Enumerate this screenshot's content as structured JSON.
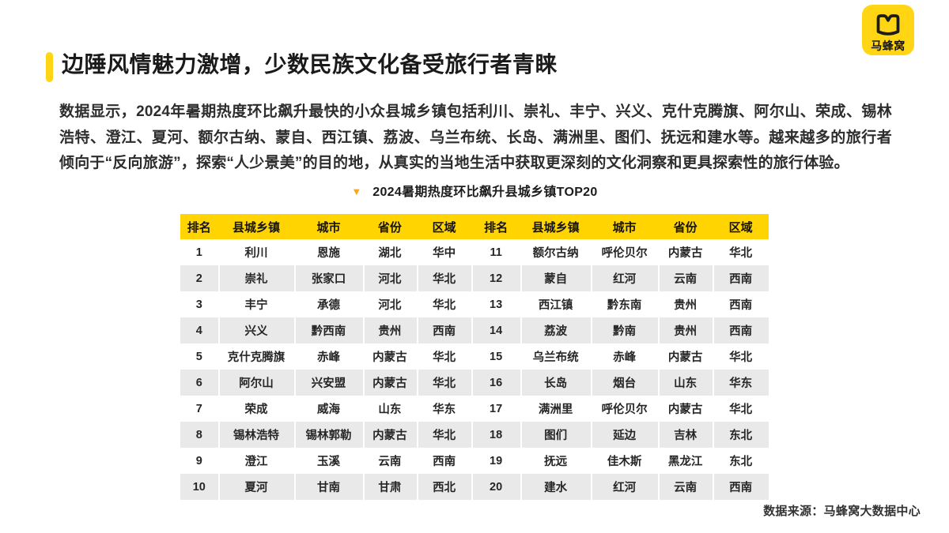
{
  "brand": {
    "logo_text": "马蜂窝",
    "logo_color": "#FFD514"
  },
  "header": {
    "title": "边陲风情魅力激增，少数民族文化备受旅行者青睐",
    "accent_color": "#FFD514"
  },
  "intro": {
    "text": "数据显示，2024年暑期热度环比飙升最快的小众县城乡镇包括利川、崇礼、丰宁、兴义、克什克腾旗、阿尔山、荣成、锡林浩特、澄江、夏河、额尔古纳、蒙自、西江镇、荔波、乌兰布统、长岛、满洲里、图们、抚远和建水等。越来越多的旅行者倾向于“反向旅游”，探索“人少景美”的目的地，从真实的当地生活中获取更深刻的文化洞察和更具探索性的旅行体验。"
  },
  "table": {
    "title": "2024暑期热度环比飙升县城乡镇TOP20",
    "title_marker_icon": "triangle-down-icon",
    "title_marker_glyph": "▼",
    "title_marker_color": "#F7A81F",
    "header_bg": "#FFD400",
    "alt_row_bg": "#E9E9E9",
    "headers": [
      "排名",
      "县城乡镇",
      "城市",
      "省份",
      "区域",
      "排名",
      "县城乡镇",
      "城市",
      "省份",
      "区域"
    ],
    "rows": [
      [
        "1",
        "利川",
        "恩施",
        "湖北",
        "华中",
        "11",
        "额尔古纳",
        "呼伦贝尔",
        "内蒙古",
        "华北"
      ],
      [
        "2",
        "崇礼",
        "张家口",
        "河北",
        "华北",
        "12",
        "蒙自",
        "红河",
        "云南",
        "西南"
      ],
      [
        "3",
        "丰宁",
        "承德",
        "河北",
        "华北",
        "13",
        "西江镇",
        "黔东南",
        "贵州",
        "西南"
      ],
      [
        "4",
        "兴义",
        "黔西南",
        "贵州",
        "西南",
        "14",
        "荔波",
        "黔南",
        "贵州",
        "西南"
      ],
      [
        "5",
        "克什克腾旗",
        "赤峰",
        "内蒙古",
        "华北",
        "15",
        "乌兰布统",
        "赤峰",
        "内蒙古",
        "华北"
      ],
      [
        "6",
        "阿尔山",
        "兴安盟",
        "内蒙古",
        "华北",
        "16",
        "长岛",
        "烟台",
        "山东",
        "华东"
      ],
      [
        "7",
        "荣成",
        "威海",
        "山东",
        "华东",
        "17",
        "满洲里",
        "呼伦贝尔",
        "内蒙古",
        "华北"
      ],
      [
        "8",
        "锡林浩特",
        "锡林郭勒",
        "内蒙古",
        "华北",
        "18",
        "图们",
        "延边",
        "吉林",
        "东北"
      ],
      [
        "9",
        "澄江",
        "玉溪",
        "云南",
        "西南",
        "19",
        "抚远",
        "佳木斯",
        "黑龙江",
        "东北"
      ],
      [
        "10",
        "夏河",
        "甘南",
        "甘肃",
        "西北",
        "20",
        "建水",
        "红河",
        "云南",
        "西南"
      ]
    ]
  },
  "footer": {
    "source": "数据来源：马蜂窝大数据中心"
  }
}
